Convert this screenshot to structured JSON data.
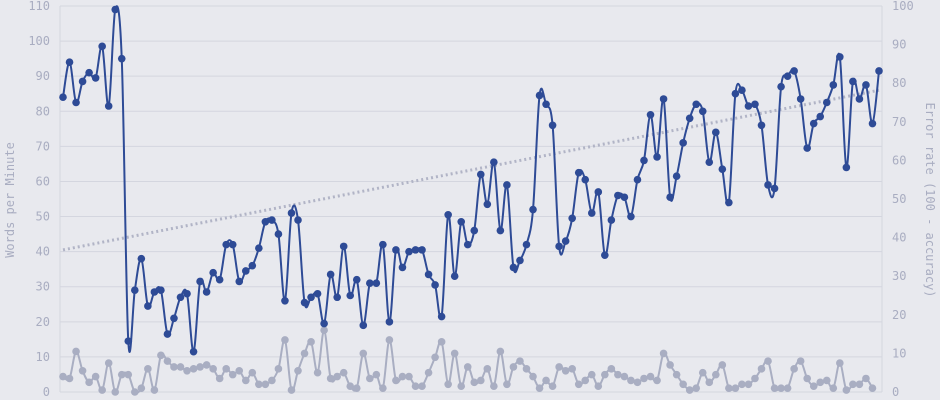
{
  "chart_data": {
    "type": "line",
    "ylabel": "Words per Minute",
    "y2label": "Error rate (100 - accuracy)",
    "ylim": [
      0,
      110
    ],
    "y2lim": [
      0,
      100
    ],
    "yticks": [
      0,
      10,
      20,
      30,
      40,
      50,
      60,
      70,
      80,
      90,
      100,
      110
    ],
    "y2ticks": [
      0,
      10,
      20,
      30,
      40,
      50,
      60,
      70,
      80,
      90,
      100
    ],
    "grid": true,
    "colors": {
      "wpm": "#2e4b96",
      "error": "#a9aec2",
      "trend": "#b1b4c6",
      "background": "#e8e9ee",
      "grid": "#d4d6df"
    },
    "series": [
      {
        "axis": "left",
        "values": [
          84,
          94,
          82.5,
          88.5,
          91,
          89.5,
          98.5,
          81.5,
          109,
          95,
          14.5,
          29,
          38,
          24.5,
          28.5,
          29,
          16.5,
          21,
          27,
          28,
          11.5,
          31.5,
          28.5,
          34,
          32,
          42,
          42,
          31.5,
          34.5,
          36,
          41,
          48.5,
          49,
          45,
          26,
          51,
          49,
          25.5,
          27,
          28,
          19.5,
          33.5,
          27,
          41.5,
          27.5,
          32,
          19,
          31,
          31,
          42,
          20,
          40.5,
          35.5,
          40,
          40.5,
          40.5,
          33.5,
          30.5,
          21.5,
          50.5,
          33,
          48.5,
          42,
          46,
          62,
          53.5,
          65.5,
          46,
          59,
          35.5,
          37.5,
          42,
          52,
          84.5,
          82,
          76,
          41.5,
          43,
          49.5,
          62.5,
          60.5,
          51,
          57,
          39,
          49,
          56,
          55.5,
          50,
          60.5,
          66,
          79,
          67,
          83.5,
          55.5,
          61.5,
          71,
          78,
          82,
          80,
          65.5,
          74,
          63.5,
          54,
          85,
          86,
          81.5,
          82,
          76,
          59,
          58,
          87,
          90,
          91.5,
          83.5,
          69.5,
          76.5,
          78.5,
          82.5,
          87.5,
          95.5,
          64,
          88.5,
          83.5,
          87.5,
          76.5,
          91.5
        ]
      },
      {
        "axis": "right",
        "values": [
          4,
          3.5,
          10.5,
          5.5,
          2.5,
          4,
          0.5,
          7.5,
          0,
          4.5,
          4.5,
          0,
          1,
          6,
          0.5,
          9.5,
          8,
          6.5,
          6.5,
          5.5,
          6,
          6.5,
          7,
          6,
          3.5,
          6,
          4.5,
          5.5,
          3,
          5,
          2,
          2,
          3,
          6,
          13.5,
          0.5,
          5.5,
          10,
          13,
          5,
          16,
          3.5,
          4,
          5,
          1.5,
          1,
          10,
          3.5,
          4.5,
          1,
          13.5,
          3,
          4,
          4,
          1.5,
          1.5,
          5,
          9,
          13,
          2,
          10,
          1.5,
          6.5,
          2.5,
          3,
          6,
          1.5,
          10.5,
          2,
          6.5,
          8,
          6,
          4,
          1,
          3,
          1.5,
          6.5,
          5.5,
          6,
          2,
          3,
          4.5,
          1.5,
          4.5,
          6,
          4.5,
          4,
          3,
          2.5,
          3.5,
          4,
          3,
          10,
          7,
          4.5,
          2,
          0.5,
          1,
          5,
          2.5,
          4.5,
          7,
          1,
          1,
          2,
          2,
          3.5,
          6,
          8,
          1,
          1,
          1,
          6,
          8,
          3.5,
          1.5,
          2.5,
          3,
          1,
          7.5,
          0.5,
          2,
          2,
          3.5,
          1
        ]
      }
    ],
    "trend": {
      "axis": "left",
      "start": 40.5,
      "end": 86
    }
  }
}
